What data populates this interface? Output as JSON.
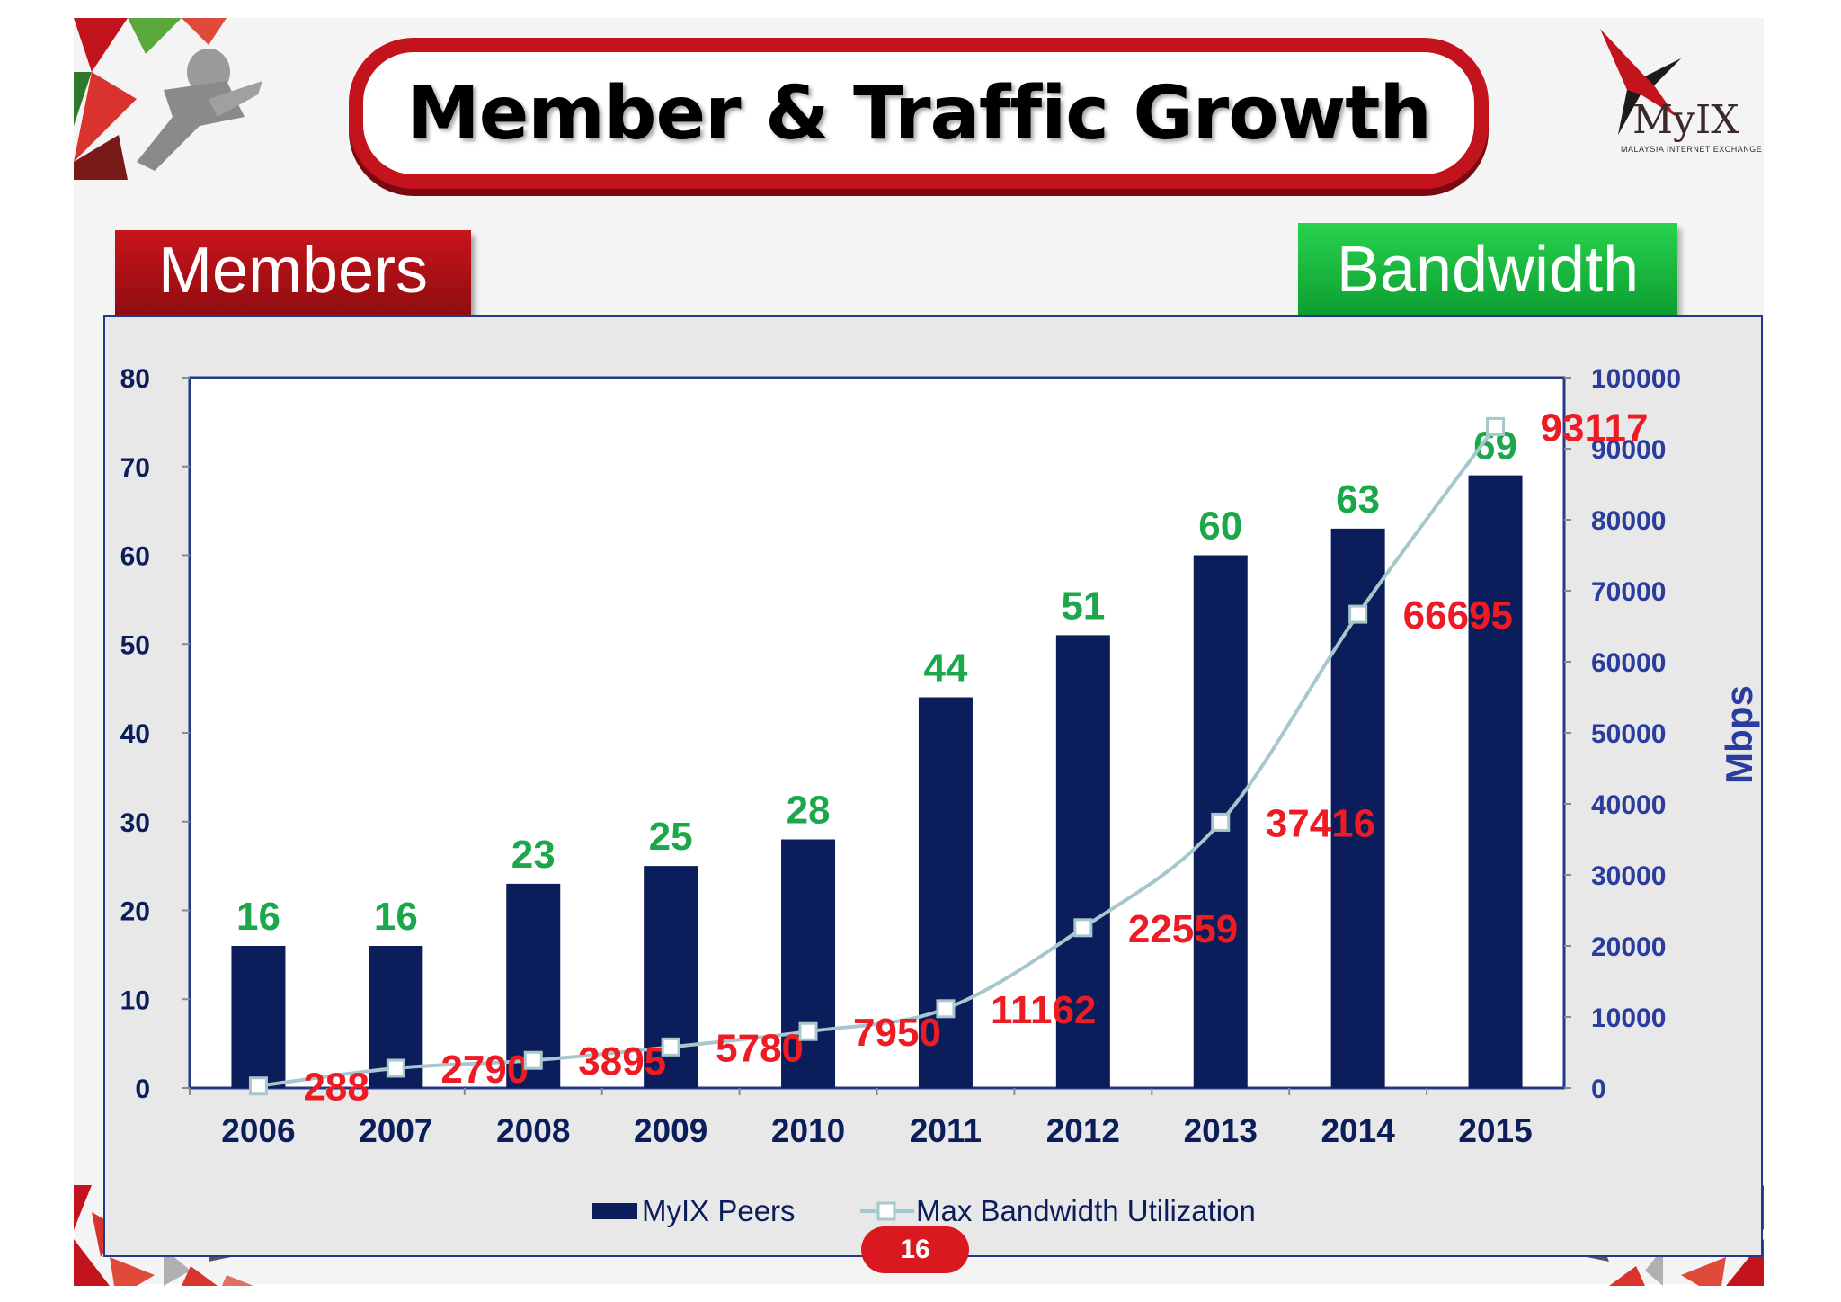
{
  "slide": {
    "title": "Member & Traffic Growth",
    "members_label": "Members",
    "bandwidth_label": "Bandwidth",
    "page_number": "16",
    "logo": {
      "name": "MyIX",
      "subtitle": "MALAYSIA INTERNET EXCHANGE"
    }
  },
  "colors": {
    "bar": "#0b1e5b",
    "line": "#a6c8cc",
    "marker_fill": "#ffffff",
    "member_label": "#1aa84a",
    "bandwidth_label": "#ee1b24",
    "axis_text": "#0b1e5b",
    "right_axis_text": "#2a3d9f",
    "title_border": "#c3131c"
  },
  "chart_data": {
    "type": "bar",
    "categories": [
      "2006",
      "2007",
      "2008",
      "2009",
      "2010",
      "2011",
      "2012",
      "2013",
      "2014",
      "2015"
    ],
    "series": [
      {
        "name": "MyIX Peers",
        "type": "bar",
        "axis": "left",
        "values": [
          16,
          16,
          23,
          25,
          28,
          44,
          51,
          60,
          63,
          69
        ]
      },
      {
        "name": "Max Bandwidth Utilization",
        "type": "line",
        "axis": "right",
        "values": [
          288,
          2790,
          3895,
          5780,
          7950,
          11162,
          22559,
          37416,
          66695,
          93117
        ]
      }
    ],
    "ylim_left": [
      0,
      80
    ],
    "yticks_left": [
      "0",
      "10",
      "20",
      "30",
      "40",
      "50",
      "60",
      "70",
      "80"
    ],
    "ylim_right": [
      0,
      100000
    ],
    "yticks_right": [
      "0",
      "10000",
      "20000",
      "30000",
      "40000",
      "50000",
      "60000",
      "70000",
      "80000",
      "90000",
      "100000"
    ],
    "ylabel_right": "Mbps",
    "legend_position": "bottom"
  }
}
